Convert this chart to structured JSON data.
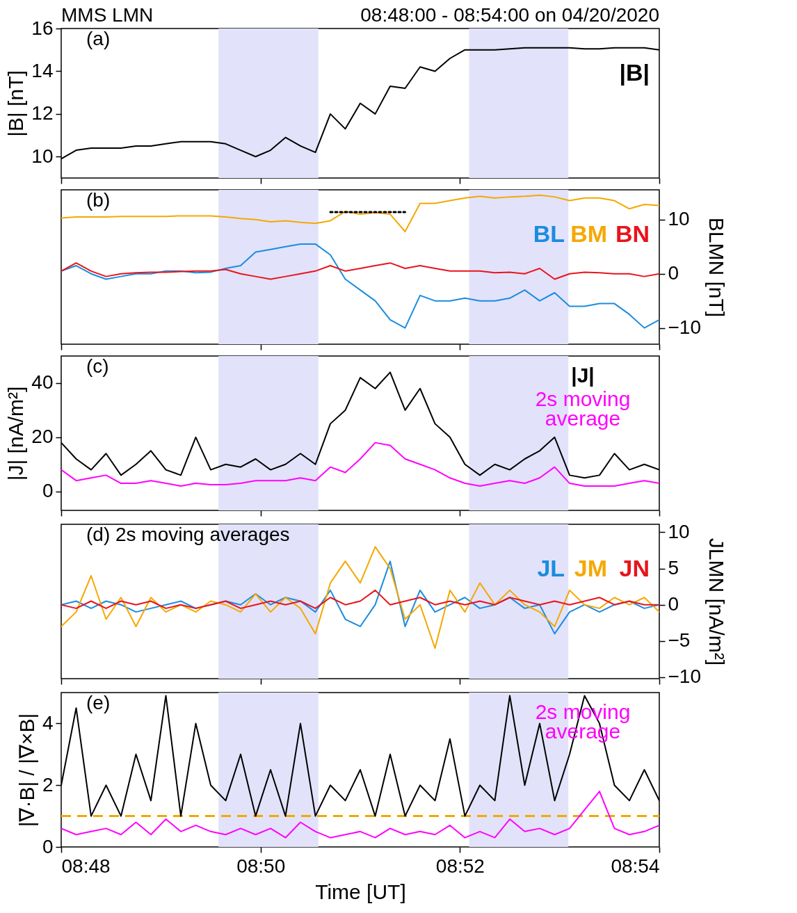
{
  "chart_data": [
    {
      "type": "line",
      "title": "MMS LMN",
      "subtitle": "08:48:00 - 08:54:00 on 04/20/2020",
      "ylabel": "|B| [nT]",
      "annotations": [
        "(a)"
      ],
      "legend": "top right",
      "tick_labels": "y",
      "xlim": [
        8.8,
        8.9
      ],
      "xticks": [
        {
          "value": 8.8,
          "label": null
        },
        {
          "value": 8.833333,
          "label": null
        },
        {
          "value": 8.866667,
          "label": null
        },
        {
          "value": 8.9,
          "label": null
        }
      ],
      "ylim": [
        9,
        16
      ],
      "yticks": [
        10,
        12,
        14,
        16
      ],
      "bands": [
        {
          "axis": "x",
          "from": 8.8263,
          "to": 8.843,
          "color": "#e2e2fa"
        },
        {
          "axis": "x",
          "from": 8.8682,
          "to": 8.8848,
          "color": "#e2e2fa"
        }
      ],
      "x": [
        8.8,
        8.8025,
        8.805,
        8.8075,
        8.81,
        8.8125,
        8.815,
        8.8175,
        8.82,
        8.8225,
        8.825,
        8.8275,
        8.83,
        8.8325,
        8.835,
        8.8375,
        8.84,
        8.8425,
        8.845,
        8.8475,
        8.85,
        8.8525,
        8.855,
        8.8575,
        8.86,
        8.8625,
        8.865,
        8.8675,
        8.87,
        8.8725,
        8.875,
        8.8775,
        8.88,
        8.8825,
        8.885,
        8.8875,
        8.89,
        8.8925,
        8.895,
        8.8975,
        8.9
      ],
      "series": [
        {
          "name": "|B|",
          "color": "#000000",
          "values": [
            9.9,
            10.3,
            10.4,
            10.4,
            10.4,
            10.5,
            10.5,
            10.6,
            10.7,
            10.7,
            10.7,
            10.6,
            10.3,
            10.0,
            10.3,
            10.9,
            10.5,
            10.2,
            12.0,
            11.3,
            12.5,
            12.0,
            13.3,
            13.2,
            14.2,
            14.0,
            14.6,
            15.0,
            15.0,
            15.0,
            15.05,
            15.1,
            15.1,
            15.1,
            15.1,
            15.05,
            15.05,
            15.1,
            15.1,
            15.1,
            15.0
          ]
        }
      ]
    },
    {
      "type": "line",
      "y2label": "BLMN [nT]",
      "annotations": [
        "(b)"
      ],
      "legend": "top right",
      "tick_labels": "y",
      "xlim": [
        8.8,
        8.9
      ],
      "xticks": [
        {
          "value": 8.8,
          "label": null
        },
        {
          "value": 8.833333,
          "label": null
        },
        {
          "value": 8.866667,
          "label": null
        },
        {
          "value": 8.9,
          "label": null
        }
      ],
      "y2lim": [
        -13,
        15.5
      ],
      "y2ticks": [
        -10,
        0,
        10
      ],
      "bands": [
        {
          "axis": "x",
          "from": 8.8263,
          "to": 8.843,
          "color": "#e2e2fa"
        },
        {
          "axis": "x",
          "from": 8.8682,
          "to": 8.8848,
          "color": "#e2e2fa"
        }
      ],
      "x": [
        8.8,
        8.8025,
        8.805,
        8.8075,
        8.81,
        8.8125,
        8.815,
        8.8175,
        8.82,
        8.8225,
        8.825,
        8.8275,
        8.83,
        8.8325,
        8.835,
        8.8375,
        8.84,
        8.8425,
        8.845,
        8.8475,
        8.85,
        8.8525,
        8.855,
        8.8575,
        8.86,
        8.8625,
        8.865,
        8.8675,
        8.87,
        8.8725,
        8.875,
        8.8775,
        8.88,
        8.8825,
        8.885,
        8.8875,
        8.89,
        8.8925,
        8.895,
        8.8975,
        8.9
      ],
      "series": [
        {
          "name": "BL",
          "color": "#1a8ce0",
          "axis": "y2",
          "values": [
            0.5,
            1.5,
            0,
            -1,
            -0.5,
            0,
            0,
            0.5,
            0.5,
            0.2,
            0.3,
            1,
            1.5,
            4,
            4.5,
            5,
            5.5,
            5.5,
            3.5,
            -1,
            -3,
            -5,
            -8.5,
            -10,
            -4,
            -5,
            -5,
            -4.5,
            -5,
            -5,
            -4.5,
            -3,
            -5,
            -3.5,
            -6,
            -6,
            -5.5,
            -5.5,
            -7.5,
            -10,
            -8.5
          ]
        },
        {
          "name": "BM",
          "color": "#f5a800",
          "axis": "y2",
          "values": [
            10.3,
            10.5,
            10.5,
            10.5,
            10.6,
            10.6,
            10.6,
            10.6,
            10.7,
            10.7,
            10.7,
            10.5,
            10.2,
            10.0,
            9.6,
            9.8,
            9.5,
            9.3,
            9.8,
            11.5,
            11.0,
            11.3,
            11.0,
            7.8,
            13.0,
            13.0,
            13.5,
            14.0,
            14.3,
            14.0,
            14.2,
            14.3,
            14.5,
            14.2,
            13.5,
            14.0,
            14.0,
            13.5,
            12.0,
            12.8,
            12.6
          ]
        },
        {
          "name": "BN",
          "color": "#e8141c",
          "axis": "y2",
          "values": [
            0.5,
            2,
            0.5,
            -0.5,
            0,
            0.2,
            0.3,
            0.3,
            0.4,
            0.5,
            0.5,
            0.8,
            0,
            -0.5,
            -1,
            -0.5,
            0,
            0.5,
            1.5,
            0.5,
            1.0,
            1.5,
            2.0,
            1.0,
            1.5,
            1.0,
            0.5,
            0.5,
            0.5,
            0.2,
            0.3,
            0,
            1.0,
            -1,
            0,
            0.3,
            0.2,
            0,
            0,
            -0.5,
            0
          ]
        },
        {
          "color": "#000000",
          "axis": "y2",
          "line_style": "dotted",
          "x": [
            8.845,
            8.8575
          ],
          "values": [
            11.4,
            11.4
          ]
        }
      ]
    },
    {
      "type": "line",
      "ylabel": "|J| [nA/m²]",
      "annotations": [
        "(c)"
      ],
      "legend": "top right",
      "tick_labels": "y",
      "xlim": [
        8.8,
        8.9
      ],
      "xticks": [
        {
          "value": 8.8,
          "label": null
        },
        {
          "value": 8.833333,
          "label": null
        },
        {
          "value": 8.866667,
          "label": null
        },
        {
          "value": 8.9,
          "label": null
        }
      ],
      "ylim": [
        -7,
        50
      ],
      "yticks": [
        0,
        20,
        40
      ],
      "bands": [
        {
          "axis": "x",
          "from": 8.8263,
          "to": 8.843,
          "color": "#e2e2fa"
        },
        {
          "axis": "x",
          "from": 8.8682,
          "to": 8.8848,
          "color": "#e2e2fa"
        }
      ],
      "x": [
        8.8,
        8.8025,
        8.805,
        8.8075,
        8.81,
        8.8125,
        8.815,
        8.8175,
        8.82,
        8.8225,
        8.825,
        8.8275,
        8.83,
        8.8325,
        8.835,
        8.8375,
        8.84,
        8.8425,
        8.845,
        8.8475,
        8.85,
        8.8525,
        8.855,
        8.8575,
        8.86,
        8.8625,
        8.865,
        8.8675,
        8.87,
        8.8725,
        8.875,
        8.8775,
        8.88,
        8.8825,
        8.885,
        8.8875,
        8.89,
        8.8925,
        8.895,
        8.8975,
        8.9
      ],
      "series": [
        {
          "name": "|J|",
          "color": "#000000",
          "values": [
            18,
            12,
            8,
            14,
            6,
            10,
            15,
            8,
            6,
            20,
            8,
            10,
            9,
            12,
            8,
            10,
            14,
            10,
            25,
            30,
            42,
            38,
            44,
            30,
            38,
            25,
            20,
            10,
            6,
            10,
            8,
            12,
            15,
            20,
            6,
            5,
            6,
            14,
            8,
            10,
            8
          ]
        },
        {
          "name": "2s moving average",
          "color": "#ff00ff",
          "values": [
            8,
            4,
            5,
            6,
            3,
            3,
            4,
            3,
            2,
            3,
            2.5,
            2.5,
            3,
            4,
            4,
            4,
            5,
            4,
            9,
            7,
            12,
            18,
            17,
            12,
            10,
            8,
            5,
            3,
            2,
            3,
            4,
            3,
            5,
            9,
            3,
            2,
            2,
            2,
            3,
            4,
            3
          ]
        }
      ]
    },
    {
      "type": "line",
      "y2label": "JLMN [nA/m²]",
      "annotations": [
        "(d) 2s moving averages"
      ],
      "legend": "top right",
      "tick_labels": "y",
      "xlim": [
        8.8,
        8.9
      ],
      "xticks": [
        {
          "value": 8.8,
          "label": null
        },
        {
          "value": 8.833333,
          "label": null
        },
        {
          "value": 8.866667,
          "label": null
        },
        {
          "value": 8.9,
          "label": null
        }
      ],
      "y2lim": [
        -10.2,
        11.1
      ],
      "y2ticks": [
        -10,
        -5,
        0,
        5,
        10
      ],
      "bands": [
        {
          "axis": "x",
          "from": 8.8263,
          "to": 8.843,
          "color": "#e2e2fa"
        },
        {
          "axis": "x",
          "from": 8.8682,
          "to": 8.8848,
          "color": "#e2e2fa"
        }
      ],
      "x": [
        8.8,
        8.8025,
        8.805,
        8.8075,
        8.81,
        8.8125,
        8.815,
        8.8175,
        8.82,
        8.8225,
        8.825,
        8.8275,
        8.83,
        8.8325,
        8.835,
        8.8375,
        8.84,
        8.8425,
        8.845,
        8.8475,
        8.85,
        8.8525,
        8.855,
        8.8575,
        8.86,
        8.8625,
        8.865,
        8.8675,
        8.87,
        8.8725,
        8.875,
        8.8775,
        8.88,
        8.8825,
        8.885,
        8.8875,
        8.89,
        8.8925,
        8.895,
        8.8975,
        8.9
      ],
      "series": [
        {
          "name": "JL",
          "color": "#1a8ce0",
          "axis": "y2",
          "values": [
            0,
            0.5,
            -0.5,
            0.5,
            0,
            -1,
            -0.5,
            0,
            0.5,
            -0.5,
            0,
            0.5,
            0,
            1.5,
            0,
            1,
            0.5,
            -1,
            2,
            -2,
            -3,
            0,
            6,
            -3,
            2,
            -1,
            0,
            1,
            -0.5,
            0,
            1,
            -0.5,
            0,
            -4,
            -1,
            0,
            -1,
            0,
            0.5,
            -0.5,
            0
          ]
        },
        {
          "name": "JM",
          "color": "#f5a800",
          "axis": "y2",
          "values": [
            -3,
            -1,
            4,
            -2,
            1,
            -3,
            1,
            -1,
            0,
            -1,
            0.5,
            0,
            -1,
            1.5,
            -1,
            1,
            -0.5,
            -4,
            3,
            6,
            3,
            8,
            5,
            -2,
            0,
            -6,
            2,
            -1,
            3,
            0,
            2,
            0,
            -1,
            -3,
            2,
            0,
            -0.5,
            1,
            0,
            1,
            -1
          ]
        },
        {
          "name": "JN",
          "color": "#e8141c",
          "axis": "y2",
          "values": [
            0,
            -0.5,
            0.5,
            -0.5,
            0.5,
            0,
            0.5,
            -0.5,
            0,
            -0.5,
            0,
            0.5,
            -0.5,
            0,
            0.5,
            0,
            0.5,
            -0.5,
            1,
            0,
            0.5,
            2,
            0,
            0.5,
            1,
            0,
            0.5,
            0,
            0.5,
            0,
            1,
            0.5,
            0,
            0.5,
            0,
            0.5,
            1,
            0,
            0.5,
            0,
            0
          ]
        }
      ]
    },
    {
      "type": "line",
      "xlabel": "Time [UT]",
      "ylabel": "|∇·B| / |∇×B|",
      "annotations": [
        "(e)"
      ],
      "legend": "top right",
      "xlim": [
        8.8,
        8.9
      ],
      "xticks": [
        {
          "value": 8.8,
          "label": "08:48"
        },
        {
          "value": 8.833333,
          "label": "08:50"
        },
        {
          "value": 8.866667,
          "label": "08:52"
        },
        {
          "value": 8.9,
          "label": "08:54"
        }
      ],
      "ylim": [
        0,
        5
      ],
      "yticks": [
        0,
        2,
        4
      ],
      "bands": [
        {
          "axis": "x",
          "from": 8.8263,
          "to": 8.843,
          "color": "#e2e2fa"
        },
        {
          "axis": "x",
          "from": 8.8682,
          "to": 8.8848,
          "color": "#e2e2fa"
        }
      ],
      "ref_lines": [
        {
          "axis": "y",
          "value": 1,
          "color": "#f5a800",
          "line_style": "dashed"
        }
      ],
      "x": [
        8.8,
        8.8025,
        8.805,
        8.8075,
        8.81,
        8.8125,
        8.815,
        8.8175,
        8.82,
        8.8225,
        8.825,
        8.8275,
        8.83,
        8.8325,
        8.835,
        8.8375,
        8.84,
        8.8425,
        8.845,
        8.8475,
        8.85,
        8.8525,
        8.855,
        8.8575,
        8.86,
        8.8625,
        8.865,
        8.8675,
        8.87,
        8.8725,
        8.875,
        8.8775,
        8.88,
        8.8825,
        8.885,
        8.8875,
        8.89,
        8.8925,
        8.895,
        8.8975,
        8.9
      ],
      "series": [
        {
          "color": "#000000",
          "values": [
            2,
            4.5,
            1,
            2,
            1,
            3,
            1.5,
            4.9,
            1,
            4,
            2,
            1.5,
            3,
            1,
            2.5,
            1,
            4,
            1,
            2,
            1.5,
            2.5,
            1,
            3,
            1,
            2,
            1.5,
            3.5,
            1,
            2,
            1.5,
            4.9,
            2,
            4,
            1.5,
            3,
            4.9,
            4,
            2,
            1.5,
            2.5,
            1.5
          ]
        },
        {
          "name": "2s moving average",
          "color": "#ff00ff",
          "values": [
            0.6,
            0.4,
            0.5,
            0.6,
            0.4,
            0.8,
            0.4,
            0.9,
            0.5,
            0.7,
            0.5,
            0.4,
            0.6,
            0.4,
            0.6,
            0.3,
            0.8,
            0.5,
            0.3,
            0.4,
            0.5,
            0.3,
            0.6,
            0.4,
            0.5,
            0.4,
            0.7,
            0.3,
            0.5,
            0.3,
            0.9,
            0.5,
            0.6,
            0.4,
            0.6,
            1.2,
            1.8,
            0.6,
            0.4,
            0.5,
            0.7
          ]
        }
      ]
    }
  ]
}
